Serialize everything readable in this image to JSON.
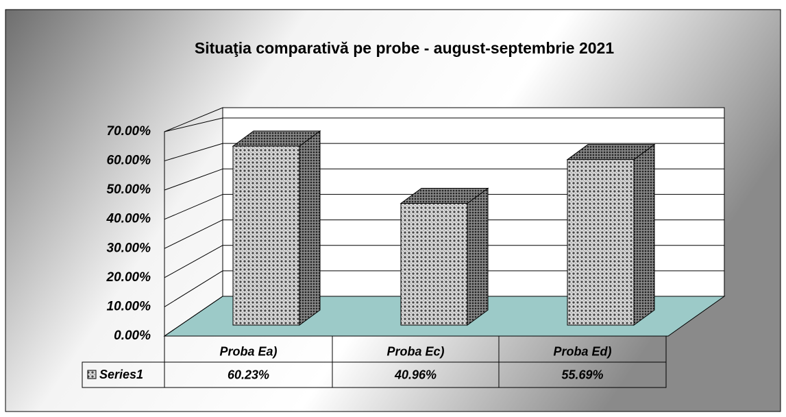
{
  "chart_data": {
    "type": "bar3d",
    "title": "Situaţia comparativă pe probe - august-septembrie 2021",
    "categories": [
      "Proba Ea)",
      "Proba Ec)",
      "Proba Ed)"
    ],
    "series": [
      {
        "name": "Series1",
        "color": "#7f7f7f",
        "values": [
          60.23,
          40.96,
          55.69
        ],
        "value_labels": [
          "60.23%",
          "40.96%",
          "55.69%"
        ]
      }
    ],
    "ylim": [
      0,
      70
    ],
    "yticks": [
      {
        "value": 0,
        "label": "0.00%"
      },
      {
        "value": 10,
        "label": "10.00%"
      },
      {
        "value": 20,
        "label": "20.00%"
      },
      {
        "value": 30,
        "label": "30.00%"
      },
      {
        "value": 40,
        "label": "40.00%"
      },
      {
        "value": 50,
        "label": "50.00%"
      },
      {
        "value": 60,
        "label": "60.00%"
      },
      {
        "value": 70,
        "label": "70.00%"
      }
    ],
    "grid": true,
    "floor_color": "#9ccac8"
  }
}
